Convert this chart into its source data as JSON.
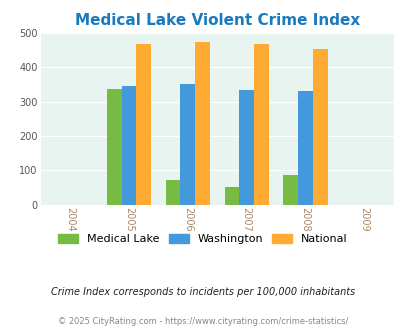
{
  "title": "Medical Lake Violent Crime Index",
  "years": [
    2005,
    2006,
    2007,
    2008
  ],
  "x_tick_labels": [
    "2004",
    "2005",
    "2006",
    "2007",
    "2008",
    "2009"
  ],
  "medical_lake": [
    338,
    73,
    50,
    86
  ],
  "washington": [
    345,
    350,
    335,
    331
  ],
  "national": [
    469,
    474,
    467,
    454
  ],
  "bar_colors": {
    "medical_lake": "#77bb44",
    "washington": "#4499dd",
    "national": "#ffaa33"
  },
  "ylim": [
    0,
    500
  ],
  "yticks": [
    0,
    100,
    200,
    300,
    400,
    500
  ],
  "xlim": [
    2003.5,
    2009.5
  ],
  "plot_bg": "#e8f4f0",
  "fig_bg": "#ffffff",
  "title_color": "#1a7abf",
  "title_fontsize": 11,
  "legend_labels": [
    "Medical Lake",
    "Washington",
    "National"
  ],
  "footnote1": "Crime Index corresponds to incidents per 100,000 inhabitants",
  "footnote2": "© 2025 CityRating.com - https://www.cityrating.com/crime-statistics/",
  "bar_width": 0.25
}
